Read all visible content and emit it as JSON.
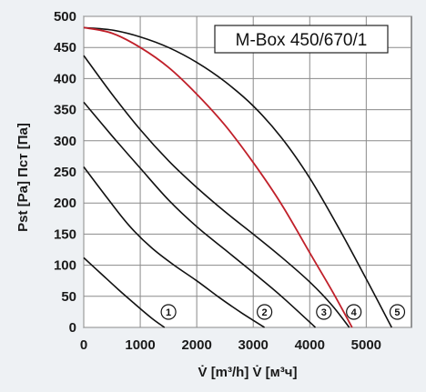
{
  "chart_data": {
    "type": "line",
    "title": "M-Box 450/670/1",
    "xlabel": "V̇ [m³/h]  V̇ [м³ч]",
    "ylabel": "Pst [Pa]  Пст [Па]",
    "xlim": [
      0,
      5800
    ],
    "ylim": [
      0,
      500
    ],
    "x_ticks": [
      "0",
      "1000",
      "2000",
      "3000",
      "4000",
      "5000"
    ],
    "y_ticks": [
      "0",
      "50",
      "100",
      "150",
      "200",
      "250",
      "300",
      "350",
      "400",
      "450",
      "500"
    ],
    "grid": true,
    "colors": {
      "curve": "#111111",
      "highlight": "#c0202a",
      "grid": "#8a8a8a",
      "background": "#ffffff"
    },
    "series": [
      {
        "marker": "1",
        "highlight": false,
        "x": [
          0,
          300,
          600,
          900,
          1200,
          1430
        ],
        "y": [
          112,
          87,
          62,
          38,
          15,
          0
        ]
      },
      {
        "marker": "2",
        "highlight": false,
        "x": [
          0,
          400,
          800,
          1200,
          1600,
          2000,
          2400,
          2800,
          3200
        ],
        "y": [
          258,
          210,
          164,
          128,
          100,
          75,
          48,
          23,
          0
        ]
      },
      {
        "marker": "3",
        "highlight": false,
        "x": [
          0,
          500,
          1000,
          1500,
          2000,
          2500,
          3000,
          3500,
          4100
        ],
        "y": [
          362,
          308,
          256,
          205,
          162,
          125,
          88,
          50,
          0
        ]
      },
      {
        "marker": "4",
        "highlight": true,
        "x": [
          0,
          500,
          1000,
          1500,
          2000,
          2500,
          3000,
          3500,
          4000,
          4400,
          4750
        ],
        "y": [
          482,
          473,
          450,
          418,
          375,
          325,
          265,
          198,
          120,
          58,
          0
        ]
      },
      {
        "marker": "4",
        "highlight": false,
        "x": [
          0,
          500,
          1000,
          1500,
          2000,
          2500,
          3000,
          3500,
          4000,
          4400,
          4700
        ],
        "y": [
          437,
          375,
          318,
          268,
          225,
          186,
          150,
          113,
          73,
          35,
          0
        ]
      },
      {
        "marker": "5",
        "highlight": false,
        "x": [
          0,
          500,
          1000,
          1500,
          2000,
          2500,
          3000,
          3500,
          4000,
          4500,
          5000,
          5450
        ],
        "y": [
          482,
          478,
          467,
          450,
          426,
          395,
          356,
          305,
          240,
          162,
          78,
          0
        ]
      }
    ],
    "markers": [
      {
        "label": "1",
        "x": 1500
      },
      {
        "label": "2",
        "x": 3200
      },
      {
        "label": "3",
        "x": 4250
      },
      {
        "label": "4",
        "x": 4780
      },
      {
        "label": "5",
        "x": 5550
      }
    ]
  }
}
